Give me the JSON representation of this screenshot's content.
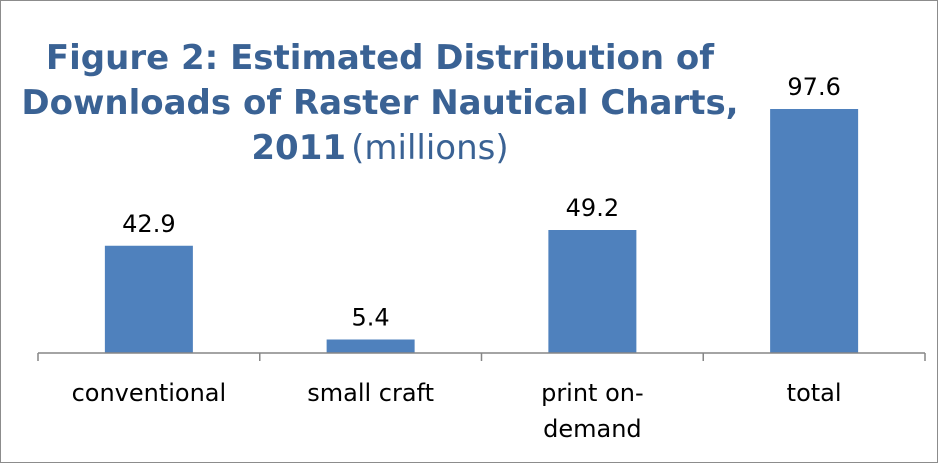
{
  "chart_data": {
    "type": "bar",
    "title_lines": [
      "Figure 2: Estimated Distribution of",
      "Downloads of Raster Nautical Charts,"
    ],
    "title_year": "2011",
    "title_unit": "(millions)",
    "categories": [
      [
        "conventional"
      ],
      [
        "small craft"
      ],
      [
        "print on-",
        "demand"
      ],
      [
        "total"
      ]
    ],
    "values": [
      42.9,
      5.4,
      49.2,
      97.6
    ],
    "value_labels": [
      "42.9",
      "5.4",
      "49.2",
      "97.6"
    ],
    "bar_color": "#4f81bd",
    "axis_color": "#868686",
    "title_color": "#3a6294",
    "ylim": [
      0,
      110
    ],
    "grid": false,
    "legend": "none"
  }
}
